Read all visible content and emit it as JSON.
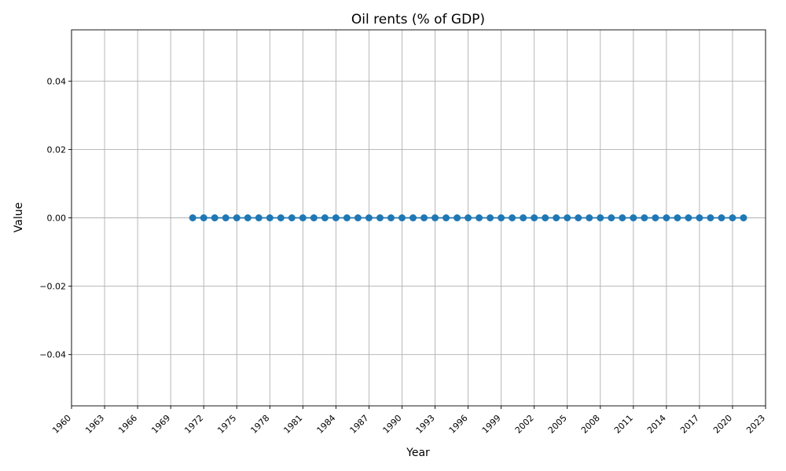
{
  "chart_data": {
    "type": "line",
    "title": "Oil rents (% of GDP)",
    "xlabel": "Year",
    "ylabel": "Value",
    "xlim": [
      1960,
      2023
    ],
    "ylim": [
      -0.055,
      0.055
    ],
    "x_ticks": [
      1960,
      1963,
      1966,
      1969,
      1972,
      1975,
      1978,
      1981,
      1984,
      1987,
      1990,
      1993,
      1996,
      1999,
      2002,
      2005,
      2008,
      2011,
      2014,
      2017,
      2020,
      2023
    ],
    "y_ticks": [
      -0.04,
      -0.02,
      0.0,
      0.02,
      0.04
    ],
    "y_tick_labels": [
      "−0.04",
      "−0.02",
      "0.00",
      "0.02",
      "0.04"
    ],
    "grid": true,
    "series": [
      {
        "color": "#1f77b4",
        "marker": "circle",
        "x": [
          1971,
          1972,
          1973,
          1974,
          1975,
          1976,
          1977,
          1978,
          1979,
          1980,
          1981,
          1982,
          1983,
          1984,
          1985,
          1986,
          1987,
          1988,
          1989,
          1990,
          1991,
          1992,
          1993,
          1994,
          1995,
          1996,
          1997,
          1998,
          1999,
          2000,
          2001,
          2002,
          2003,
          2004,
          2005,
          2006,
          2007,
          2008,
          2009,
          2010,
          2011,
          2012,
          2013,
          2014,
          2015,
          2016,
          2017,
          2018,
          2019,
          2020,
          2021
        ],
        "values": [
          0,
          0,
          0,
          0,
          0,
          0,
          0,
          0,
          0,
          0,
          0,
          0,
          0,
          0,
          0,
          0,
          0,
          0,
          0,
          0,
          0,
          0,
          0,
          0,
          0,
          0,
          0,
          0,
          0,
          0,
          0,
          0,
          0,
          0,
          0,
          0,
          0,
          0,
          0,
          0,
          0,
          0,
          0,
          0,
          0,
          0,
          0,
          0,
          0,
          0,
          0
        ]
      }
    ]
  }
}
